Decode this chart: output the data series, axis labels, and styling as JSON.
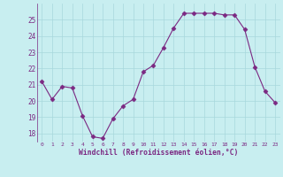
{
  "x": [
    0,
    1,
    2,
    3,
    4,
    5,
    6,
    7,
    8,
    9,
    10,
    11,
    12,
    13,
    14,
    15,
    16,
    17,
    18,
    19,
    20,
    21,
    22,
    23
  ],
  "y": [
    21.2,
    20.1,
    20.9,
    20.8,
    19.1,
    17.8,
    17.7,
    18.9,
    19.7,
    20.1,
    21.8,
    22.2,
    23.3,
    24.5,
    25.4,
    25.4,
    25.4,
    25.4,
    25.3,
    25.3,
    24.4,
    22.1,
    20.6,
    19.9
  ],
  "xlim": [
    -0.5,
    23.5
  ],
  "ylim": [
    17.5,
    26.0
  ],
  "yticks": [
    18,
    19,
    20,
    21,
    22,
    23,
    24,
    25
  ],
  "xticks": [
    0,
    1,
    2,
    3,
    4,
    5,
    6,
    7,
    8,
    9,
    10,
    11,
    12,
    13,
    14,
    15,
    16,
    17,
    18,
    19,
    20,
    21,
    22,
    23
  ],
  "xlabel": "Windchill (Refroidissement éolien,°C)",
  "line_color": "#7b2882",
  "marker": "D",
  "marker_size": 2.5,
  "bg_color": "#c8eef0",
  "grid_color": "#a8d8dc",
  "label_color": "#7b2882"
}
